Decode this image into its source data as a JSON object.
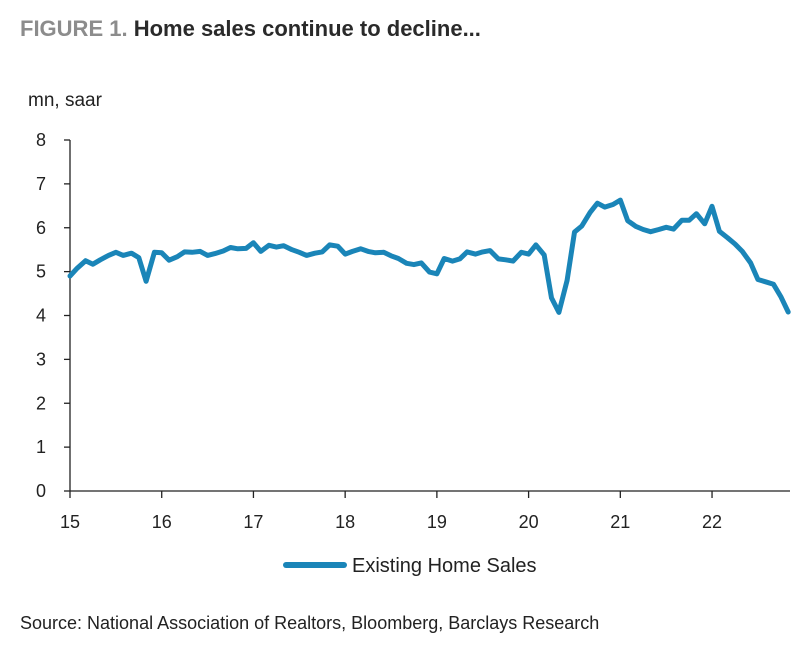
{
  "figure": {
    "label": "FIGURE 1.",
    "title": "Home sales continue to decline...",
    "source": "Source: National Association of Realtors, Bloomberg, Barclays Research"
  },
  "chart_data": {
    "type": "line",
    "title": "Home sales continue to decline...",
    "ylabel": "mn, saar",
    "xlabel": "",
    "ylim": [
      0,
      8
    ],
    "xlim": [
      2015.0,
      2022.85
    ],
    "yticks": [
      0,
      1,
      2,
      3,
      4,
      5,
      6,
      7,
      8
    ],
    "xticks": [
      {
        "value": 2015,
        "label": "15"
      },
      {
        "value": 2016,
        "label": "16"
      },
      {
        "value": 2017,
        "label": "17"
      },
      {
        "value": 2018,
        "label": "18"
      },
      {
        "value": 2019,
        "label": "19"
      },
      {
        "value": 2020,
        "label": "20"
      },
      {
        "value": 2021,
        "label": "21"
      },
      {
        "value": 2022,
        "label": "22"
      }
    ],
    "grid": false,
    "legend": {
      "position": "bottom-center"
    },
    "series": [
      {
        "name": "Existing Home Sales",
        "color": "#1a85b8",
        "x": [
          2015.0,
          2015.08,
          2015.17,
          2015.25,
          2015.33,
          2015.42,
          2015.5,
          2015.58,
          2015.67,
          2015.75,
          2015.83,
          2015.92,
          2016.0,
          2016.08,
          2016.17,
          2016.25,
          2016.33,
          2016.42,
          2016.5,
          2016.58,
          2016.67,
          2016.75,
          2016.83,
          2016.92,
          2017.0,
          2017.08,
          2017.17,
          2017.25,
          2017.33,
          2017.42,
          2017.5,
          2017.58,
          2017.67,
          2017.75,
          2017.83,
          2017.92,
          2018.0,
          2018.08,
          2018.17,
          2018.25,
          2018.33,
          2018.42,
          2018.5,
          2018.58,
          2018.67,
          2018.75,
          2018.83,
          2018.92,
          2019.0,
          2019.08,
          2019.17,
          2019.25,
          2019.33,
          2019.42,
          2019.5,
          2019.58,
          2019.67,
          2019.75,
          2019.83,
          2019.92,
          2020.0,
          2020.08,
          2020.17,
          2020.25,
          2020.33,
          2020.42,
          2020.5,
          2020.58,
          2020.67,
          2020.75,
          2020.83,
          2020.92,
          2021.0,
          2021.08,
          2021.17,
          2021.25,
          2021.33,
          2021.42,
          2021.5,
          2021.58,
          2021.67,
          2021.75,
          2021.83,
          2021.92,
          2022.0,
          2022.08,
          2022.17,
          2022.25,
          2022.33,
          2022.42,
          2022.5,
          2022.58,
          2022.67,
          2022.75,
          2022.83
        ],
        "values": [
          4.9,
          5.08,
          5.25,
          5.17,
          5.27,
          5.37,
          5.44,
          5.37,
          5.42,
          5.32,
          4.78,
          5.44,
          5.43,
          5.26,
          5.34,
          5.45,
          5.44,
          5.46,
          5.37,
          5.41,
          5.47,
          5.55,
          5.52,
          5.53,
          5.66,
          5.46,
          5.6,
          5.56,
          5.59,
          5.5,
          5.44,
          5.37,
          5.42,
          5.45,
          5.61,
          5.58,
          5.4,
          5.46,
          5.52,
          5.46,
          5.43,
          5.44,
          5.36,
          5.3,
          5.19,
          5.16,
          5.2,
          4.99,
          4.95,
          5.3,
          5.24,
          5.29,
          5.45,
          5.4,
          5.45,
          5.48,
          5.29,
          5.27,
          5.24,
          5.44,
          5.4,
          5.61,
          5.38,
          4.4,
          4.07,
          4.8,
          5.9,
          6.04,
          6.35,
          6.56,
          6.47,
          6.53,
          6.63,
          6.16,
          6.03,
          5.96,
          5.91,
          5.96,
          6.01,
          5.97,
          6.17,
          6.17,
          6.32,
          6.09,
          6.49,
          5.92,
          5.77,
          5.63,
          5.46,
          5.2,
          4.82,
          4.77,
          4.71,
          4.43,
          4.08
        ]
      }
    ]
  }
}
